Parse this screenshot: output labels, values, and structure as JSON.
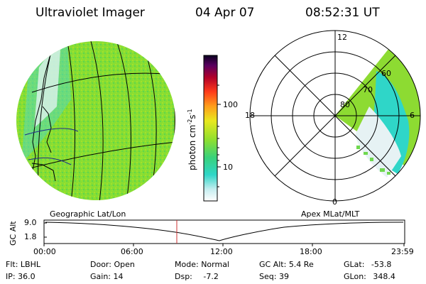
{
  "header": {
    "instrument": "Ultraviolet Imager",
    "date": "04 Apr 07",
    "time": "08:52:31 UT"
  },
  "left_panel_label": "Geographic Lat/Lon",
  "right_panel_label": "Apex MLat/MLT",
  "colorbar": {
    "label": "photon cm",
    "label_exp1": "-2",
    "label_s": "s",
    "label_exp2": "-1",
    "ticks": [
      "100",
      "10"
    ]
  },
  "polar": {
    "mlt_labels": [
      "12",
      "18",
      "6",
      "0"
    ],
    "lat_labels": [
      "80",
      "70",
      "60"
    ]
  },
  "timeline": {
    "ylabel": "GC Alt",
    "y_ticks": [
      "9.0",
      "1.8"
    ],
    "x_ticks": [
      "00:00",
      "06:00",
      "12:00",
      "18:00",
      "23:59"
    ],
    "marker_color": "#cc3333"
  },
  "info": {
    "row1": [
      {
        "key": "Flt:",
        "val": "LBHL"
      },
      {
        "key": "Door:",
        "val": "Open"
      },
      {
        "key": "Mode:",
        "val": "Normal"
      },
      {
        "key": "GC Alt:",
        "val": "5.4 Re"
      },
      {
        "key": "GLat:",
        "val": "-53.8"
      }
    ],
    "row2": [
      {
        "key": "IP:",
        "val": "36.0"
      },
      {
        "key": "Gain:",
        "val": "14"
      },
      {
        "key": "Dsp:",
        "val": "-7.2"
      },
      {
        "key": "Seq:",
        "val": "39"
      },
      {
        "key": "GLon:",
        "val": "348.4"
      }
    ]
  },
  "colors": {
    "aurora_green": "#7ed321",
    "aurora_cyan": "#3ad6d6",
    "aurora_pale": "#e6f2f4"
  }
}
